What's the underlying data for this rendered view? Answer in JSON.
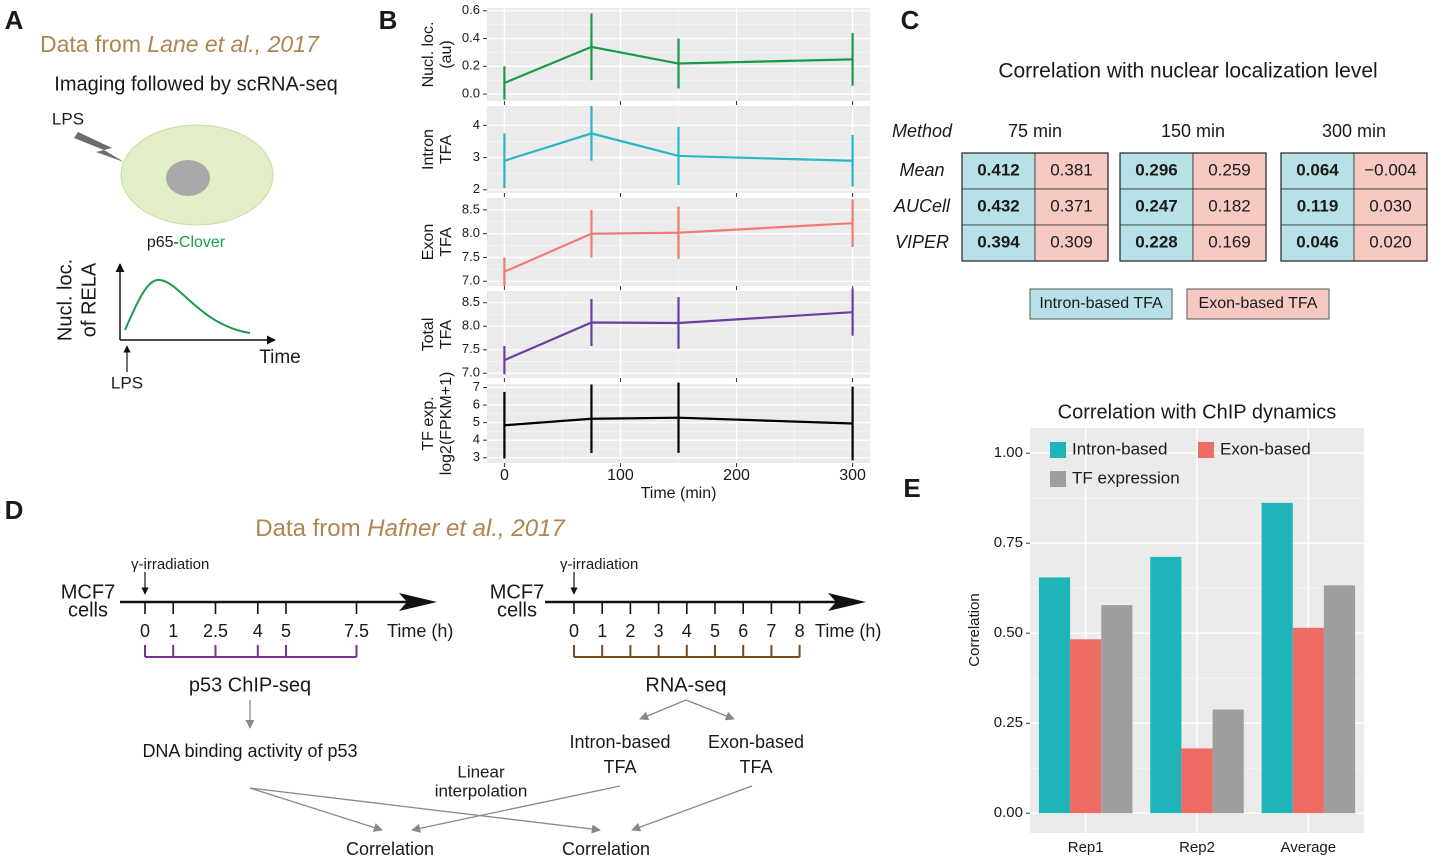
{
  "panel_labels": [
    "A",
    "B",
    "C",
    "D",
    "E"
  ],
  "panel_a": {
    "source_prefix": "Data from ",
    "source_ref": "Lane et al., 2017",
    "subtitle": "Imaging followed by scRNA-seq",
    "stimulus": "LPS",
    "reporter_prefix": "p65-",
    "reporter_tag": "Clover",
    "plot_ylabel": [
      "Nucl. loc.",
      "of RELA"
    ],
    "plot_xlabel": "Time",
    "arrow_label": "LPS"
  },
  "panel_c": {
    "title": "Correlation with nuclear localization level",
    "header": {
      "method": "Method",
      "columns": [
        "75 min",
        "150 min",
        "300 min"
      ]
    },
    "rows": [
      {
        "method": "Mean",
        "cells": [
          [
            "0.412",
            "0.381"
          ],
          [
            "0.296",
            "0.259"
          ],
          [
            "0.064",
            "−0.004"
          ]
        ]
      },
      {
        "method": "AUCell",
        "cells": [
          [
            "0.432",
            "0.371"
          ],
          [
            "0.247",
            "0.182"
          ],
          [
            "0.119",
            "0.030"
          ]
        ]
      },
      {
        "method": "VIPER",
        "cells": [
          [
            "0.394",
            "0.309"
          ],
          [
            "0.228",
            "0.169"
          ],
          [
            "0.046",
            "0.020"
          ]
        ]
      }
    ],
    "legend": [
      "Intron-based TFA",
      "Exon-based TFA"
    ]
  },
  "panel_d": {
    "source_prefix": "Data from ",
    "source_ref": "Hafner et al., 2017",
    "chip": {
      "stimulus": "γ-irradiation",
      "cell_line": [
        "MCF7",
        "cells"
      ],
      "ticks": [
        0,
        1,
        2.5,
        4,
        5,
        7.5
      ],
      "axis_label": "Time (h)",
      "assay": "p53 ChIP-seq",
      "readout": "DNA binding activity of p53"
    },
    "rna": {
      "stimulus": "γ-irradiation",
      "cell_line": [
        "MCF7",
        "cells"
      ],
      "ticks": [
        0,
        1,
        2,
        3,
        4,
        5,
        6,
        7,
        8
      ],
      "axis_label": "Time (h)",
      "assay": "RNA-seq",
      "readouts": [
        [
          "Intron-based",
          "TFA"
        ],
        [
          "Exon-based",
          "TFA"
        ]
      ]
    },
    "interpolation": [
      "Linear",
      "interpolation"
    ],
    "outputs": [
      "Correlation",
      "Correlation"
    ]
  },
  "chart_data": [
    {
      "type": "line",
      "ylabel": [
        "Nucl. loc.",
        "(au)"
      ],
      "x": [
        0,
        75,
        150,
        300
      ],
      "values": [
        0.08,
        0.34,
        0.22,
        0.25
      ],
      "errors": [
        0.12,
        0.24,
        0.18,
        0.19
      ],
      "color": "#1b9a48",
      "xlim": [
        -15,
        315
      ],
      "xticks": [
        0,
        100,
        200,
        300
      ],
      "ylim": [
        -0.05,
        0.62
      ],
      "yticks": [
        {
          "value": 0,
          "label": "0.0"
        },
        0.2,
        0.4,
        0.6
      ],
      "grid": true
    },
    {
      "type": "line",
      "ylabel": [
        "Intron",
        "TFA"
      ],
      "x": [
        0,
        75,
        150,
        300
      ],
      "values": [
        2.9,
        3.75,
        3.05,
        2.9
      ],
      "errors": [
        0.85,
        0.85,
        0.9,
        0.8
      ],
      "color": "#2ab6c4",
      "xlim": [
        -15,
        315
      ],
      "xticks": [
        0,
        100,
        200,
        300
      ],
      "ylim": [
        1.9,
        4.6
      ],
      "yticks": [
        2,
        3,
        4
      ],
      "grid": true
    },
    {
      "type": "line",
      "ylabel": [
        "Exon",
        "TFA"
      ],
      "x": [
        0,
        75,
        150,
        300
      ],
      "values": [
        7.2,
        8.0,
        8.02,
        8.22
      ],
      "errors": [
        0.3,
        0.5,
        0.55,
        0.5
      ],
      "color": "#ef7b72",
      "xlim": [
        -15,
        315
      ],
      "xticks": [
        0,
        100,
        200,
        300
      ],
      "ylim": [
        6.9,
        8.75
      ],
      "yticks": [
        {
          "value": 7,
          "label": "7.0"
        },
        7.5,
        {
          "value": 8,
          "label": "8.0"
        },
        8.5
      ],
      "grid": true
    },
    {
      "type": "line",
      "ylabel": [
        "Total",
        "TFA"
      ],
      "x": [
        0,
        75,
        150,
        300
      ],
      "values": [
        7.28,
        8.08,
        8.07,
        8.3
      ],
      "errors": [
        0.3,
        0.5,
        0.55,
        0.5
      ],
      "color": "#6a3fa0",
      "xlim": [
        -15,
        315
      ],
      "xticks": [
        0,
        100,
        200,
        300
      ],
      "ylim": [
        6.9,
        8.75
      ],
      "yticks": [
        {
          "value": 7,
          "label": "7.0"
        },
        7.5,
        {
          "value": 8,
          "label": "8.0"
        },
        8.5
      ],
      "grid": true
    },
    {
      "type": "line",
      "ylabel": [
        "TF exp.",
        "log2(FPKM+1)"
      ],
      "xlabel": "Time (min)",
      "x": [
        0,
        75,
        150,
        300
      ],
      "values": [
        4.85,
        5.22,
        5.28,
        4.95
      ],
      "errors": [
        1.9,
        1.95,
        2.0,
        2.1
      ],
      "color": "#000000",
      "xlim": [
        -15,
        315
      ],
      "xticks": [
        0,
        100,
        200,
        300
      ],
      "ylim": [
        2.7,
        7.2
      ],
      "yticks": [
        3,
        4,
        5,
        6,
        7
      ],
      "grid": true
    },
    {
      "type": "bar",
      "title": "Correlation with ChIP dynamics",
      "ylabel": "Correlation",
      "categories": [
        "Rep1",
        "Rep2",
        "Average"
      ],
      "series": [
        {
          "name": "Intron-based",
          "color": "#1fb5b8",
          "values": [
            0.655,
            0.712,
            0.862
          ]
        },
        {
          "name": "Exon-based",
          "color": "#ef6c64",
          "values": [
            0.483,
            0.18,
            0.515
          ]
        },
        {
          "name": "TF expression",
          "color": "#9e9e9e",
          "values": [
            0.578,
            0.288,
            0.633
          ]
        }
      ],
      "ylim": [
        -0.055,
        1.07
      ],
      "yticks": [
        {
          "value": 0,
          "label": "0.00"
        },
        {
          "value": 0.25,
          "label": "0.25"
        },
        {
          "value": 0.5,
          "label": "0.50"
        },
        {
          "value": 0.75,
          "label": "0.75"
        },
        {
          "value": 1,
          "label": "1.00"
        }
      ],
      "grid": true,
      "legend": "top-left"
    }
  ]
}
